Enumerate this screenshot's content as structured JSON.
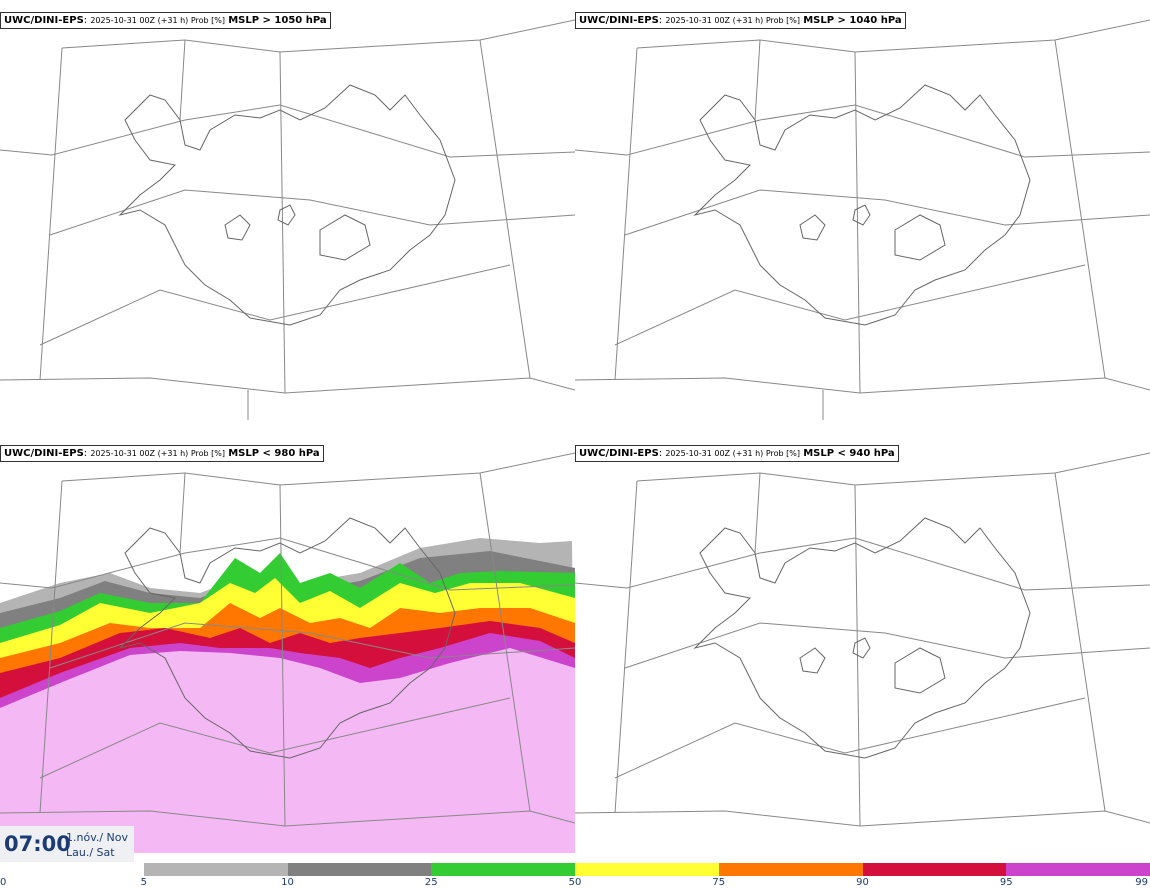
{
  "panels": [
    {
      "model": "UWC/DINI-EPS",
      "run": "2025-10-31 00Z (+31 h) Prob [%]",
      "threshold": "MSLP > 1050 hPa"
    },
    {
      "model": "UWC/DINI-EPS",
      "run": "2025-10-31 00Z (+31 h) Prob [%]",
      "threshold": "MSLP > 1040 hPa"
    },
    {
      "model": "UWC/DINI-EPS",
      "run": "2025-10-31 00Z (+31 h) Prob [%]",
      "threshold": "MSLP < 980 hPa"
    },
    {
      "model": "UWC/DINI-EPS",
      "run": "2025-10-31 00Z (+31 h) Prob [%]",
      "threshold": "MSLP < 940 hPa"
    }
  ],
  "valid_time": {
    "time": "07:00",
    "date_line1": "1.nóv./ Nov",
    "date_line2": "Lau./ Sat"
  },
  "legend": {
    "ticks": [
      "0",
      "5",
      "10",
      "25",
      "50",
      "75",
      "90",
      "95",
      "99"
    ],
    "colors": [
      "#ffffff",
      "#b4b4b4",
      "#808080",
      "#33cc33",
      "#ffff33",
      "#ff7700",
      "#d40f3c",
      "#cc44cc",
      "#f4b8f4"
    ]
  }
}
